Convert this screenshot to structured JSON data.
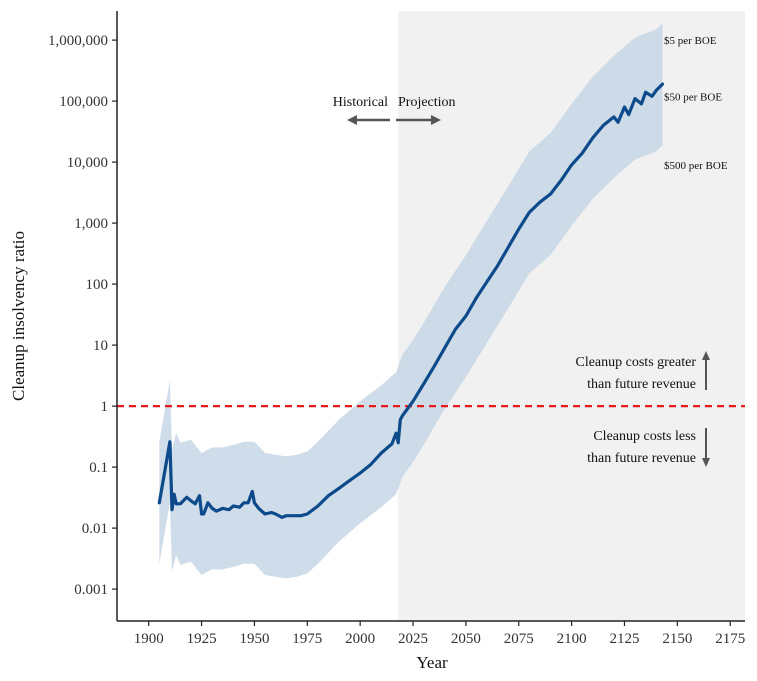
{
  "chart_data": {
    "type": "line",
    "xlabel": "Year",
    "ylabel": "Cleanup insolvency ratio",
    "xlim": [
      1885,
      2182
    ],
    "ylim": [
      0.0003,
      3000000
    ],
    "yscale": "log",
    "x_ticks": [
      1900,
      1925,
      1950,
      1975,
      2000,
      2025,
      2050,
      2075,
      2100,
      2125,
      2150,
      2175
    ],
    "x_tick_labels": [
      "1900",
      "1925",
      "1950",
      "1975",
      "2000",
      "2025",
      "2050",
      "2075",
      "2100",
      "2125",
      "2150",
      "2175"
    ],
    "y_ticks": [
      0.001,
      0.01,
      0.1,
      1,
      10,
      100,
      1000,
      10000,
      100000,
      1000000
    ],
    "y_tick_labels": [
      "0.001",
      "0.01",
      "0.1",
      "1",
      "10",
      "100",
      "1,000",
      "10,000",
      "100,000",
      "1,000,000"
    ],
    "projection_start": 2018,
    "reference_line": {
      "y": 1,
      "color": "#e41a1c",
      "style": "dashed"
    },
    "colors": {
      "line": "#0d4a8b",
      "band": "#c7d6e5",
      "projection_bg": "#f1f1f1",
      "arrow": "#555555"
    },
    "series": [
      {
        "name": "$50 per BOE",
        "x": [
          1905,
          1910,
          1911,
          1912,
          1913,
          1915,
          1918,
          1920,
          1922,
          1924,
          1925,
          1926,
          1928,
          1930,
          1932,
          1935,
          1938,
          1940,
          1943,
          1945,
          1947,
          1949,
          1950,
          1952,
          1955,
          1958,
          1960,
          1963,
          1965,
          1968,
          1970,
          1972,
          1975,
          1980,
          1985,
          1990,
          1995,
          2000,
          2005,
          2010,
          2015,
          2017,
          2018,
          2019,
          2020,
          2025,
          2030,
          2035,
          2040,
          2045,
          2050,
          2055,
          2060,
          2065,
          2070,
          2075,
          2080,
          2085,
          2090,
          2095,
          2100,
          2105,
          2110,
          2115,
          2120,
          2122,
          2125,
          2127,
          2130,
          2133,
          2135,
          2138,
          2140,
          2143
        ],
        "values": [
          0.026,
          0.26,
          0.02,
          0.036,
          0.025,
          0.025,
          0.032,
          0.028,
          0.025,
          0.034,
          0.017,
          0.017,
          0.026,
          0.021,
          0.019,
          0.021,
          0.02,
          0.023,
          0.022,
          0.026,
          0.026,
          0.04,
          0.026,
          0.021,
          0.017,
          0.018,
          0.017,
          0.015,
          0.016,
          0.016,
          0.016,
          0.016,
          0.017,
          0.023,
          0.034,
          0.045,
          0.06,
          0.08,
          0.11,
          0.17,
          0.24,
          0.36,
          0.25,
          0.6,
          0.7,
          1.2,
          2.3,
          4.5,
          9,
          18,
          30,
          60,
          110,
          200,
          400,
          800,
          1500,
          2200,
          3000,
          5000,
          9000,
          14000,
          25000,
          40000,
          55000,
          45000,
          80000,
          60000,
          110000,
          90000,
          140000,
          120000,
          150000,
          190000
        ]
      }
    ],
    "band": {
      "x": [
        1905,
        1910,
        1911,
        1913,
        1915,
        1920,
        1925,
        1930,
        1935,
        1940,
        1945,
        1950,
        1955,
        1960,
        1965,
        1970,
        1975,
        1980,
        1990,
        2000,
        2010,
        2017,
        2020,
        2025,
        2030,
        2040,
        2050,
        2060,
        2070,
        2080,
        2090,
        2100,
        2110,
        2120,
        2130,
        2140,
        2143
      ],
      "upper": [
        0.26,
        2.6,
        0.2,
        0.36,
        0.25,
        0.28,
        0.17,
        0.21,
        0.21,
        0.23,
        0.26,
        0.26,
        0.17,
        0.16,
        0.15,
        0.16,
        0.18,
        0.26,
        0.6,
        1.2,
        2.2,
        3.6,
        7,
        12,
        23,
        90,
        300,
        1100,
        4000,
        15000,
        30000,
        90000,
        250000,
        550000,
        1100000,
        1500000,
        1900000
      ],
      "lower": [
        0.0026,
        0.026,
        0.002,
        0.0036,
        0.0025,
        0.0028,
        0.0017,
        0.0021,
        0.0021,
        0.0023,
        0.0026,
        0.0026,
        0.0017,
        0.0016,
        0.0015,
        0.0016,
        0.0018,
        0.0026,
        0.006,
        0.012,
        0.022,
        0.036,
        0.07,
        0.12,
        0.23,
        0.9,
        3,
        11,
        40,
        150,
        300,
        900,
        2500,
        5500,
        11000,
        15000,
        19000
      ]
    },
    "band_labels": [
      {
        "text": "$5 per BOE",
        "y": 1000000
      },
      {
        "text": "$50 per BOE",
        "y": 120000
      },
      {
        "text": "$500 per BOE",
        "y": 9000
      }
    ],
    "annotations": {
      "historical": "Historical",
      "projection": "Projection",
      "above_line1": "Cleanup costs greater",
      "above_line2": "than future revenue",
      "below_line1": "Cleanup costs less",
      "below_line2": "than future revenue"
    },
    "grid": false,
    "legend": "none"
  }
}
